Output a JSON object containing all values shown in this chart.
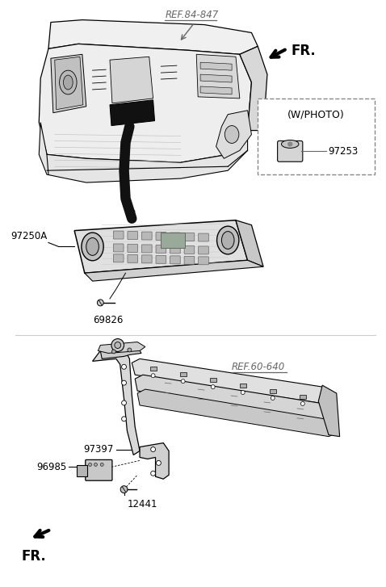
{
  "bg_color": "#ffffff",
  "line_color": "#000000",
  "gray_color": "#666666",
  "ref_color": "#666688",
  "dashed_box_color": "#888888",
  "labels": {
    "ref_84_847": "REF.84-847",
    "fr_top": "FR.",
    "w_photo": "(W/PHOTO)",
    "part_97253": "97253",
    "part_97250A": "97250A",
    "part_69826": "69826",
    "ref_60_640": "REF.60-640",
    "part_97397": "97397",
    "part_96985": "96985",
    "part_12441": "12441",
    "fr_bottom": "FR."
  },
  "figsize": [
    4.78,
    7.27
  ],
  "dpi": 100
}
